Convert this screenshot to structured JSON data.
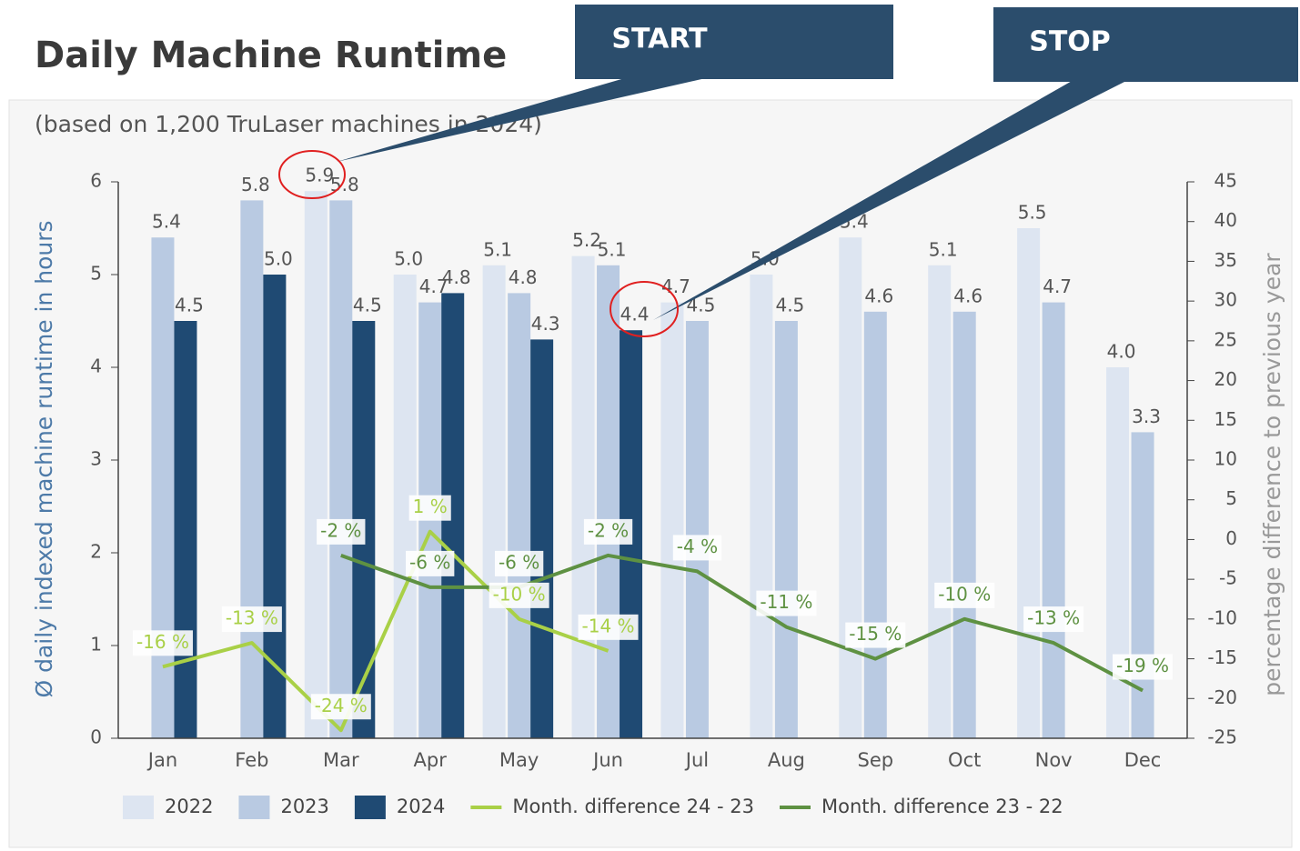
{
  "chart_data": {
    "type": "bar",
    "title": "Daily Machine Runtime",
    "subtitle": "(based on 1,200 TruLaser machines in 2024)",
    "y_label": "Ø daily indexed machine runtime in hours",
    "y2_label": "percentage difference to previous year",
    "annotations": [
      "START",
      "STOP"
    ],
    "categories": [
      "Jan",
      "Feb",
      "Mar",
      "Apr",
      "May",
      "Jun",
      "Jul",
      "Aug",
      "Sep",
      "Oct",
      "Nov",
      "Dec"
    ],
    "series": [
      {
        "name": "2022",
        "type": "bar",
        "color": "#dde5f1",
        "values": [
          null,
          null,
          5.9,
          5.0,
          5.1,
          5.2,
          4.7,
          5.0,
          5.4,
          5.1,
          5.5,
          4.0
        ],
        "value_labels": [
          null,
          null,
          "5.9",
          "5.0",
          "5.1",
          "5.2",
          "4.7",
          "5.0",
          "5.4",
          "5.1",
          "5.5",
          "4.0"
        ]
      },
      {
        "name": "2023",
        "type": "bar",
        "color": "#b9cae2",
        "values": [
          5.4,
          5.8,
          5.8,
          4.7,
          4.8,
          5.1,
          4.5,
          4.5,
          4.6,
          4.6,
          4.7,
          3.3
        ],
        "value_labels": [
          "5.4",
          "5.8",
          "5.8",
          "4.7",
          "4.8",
          "5.1",
          "4.5",
          "4.5",
          "4.6",
          "4.6",
          "4.7",
          "3.3"
        ]
      },
      {
        "name": "2024",
        "type": "bar",
        "color": "#1f4a73",
        "values": [
          4.5,
          5.0,
          4.5,
          4.8,
          4.3,
          4.4,
          null,
          null,
          null,
          null,
          null,
          null
        ],
        "value_labels": [
          "4.5",
          "5.0",
          "4.5",
          "4.8",
          "4.3",
          "4.4",
          null,
          null,
          null,
          null,
          null,
          null
        ]
      },
      {
        "name": "Month. difference 24 - 23",
        "type": "line",
        "axis": "y2",
        "color": "#a9d047",
        "values": [
          -16,
          -13,
          -24,
          1,
          -10,
          -14,
          null,
          null,
          null,
          null,
          null,
          null
        ],
        "value_labels": [
          "-16 %",
          "-13 %",
          "-24 %",
          "1 %",
          "-10 %",
          "-14 %",
          null,
          null,
          null,
          null,
          null,
          null
        ]
      },
      {
        "name": "Month. difference 23 - 22",
        "type": "line",
        "axis": "y2",
        "color": "#5e9142",
        "values": [
          null,
          null,
          -2,
          -6,
          -6,
          -2,
          -4,
          -11,
          -15,
          -10,
          -13,
          -19
        ],
        "value_labels": [
          null,
          null,
          "-2 %",
          "-6 %",
          "-6 %",
          "-2 %",
          "-4 %",
          "-11 %",
          "-15 %",
          "-10 %",
          "-13 %",
          "-19 %"
        ]
      }
    ],
    "ylim": [
      0,
      6
    ],
    "yticks": [
      0,
      1,
      2,
      3,
      4,
      5,
      6
    ],
    "y2lim": [
      -25,
      45
    ],
    "y2ticks": [
      -25,
      -20,
      -15,
      -10,
      -5,
      0,
      5,
      10,
      15,
      20,
      25,
      30,
      35,
      40,
      45
    ]
  }
}
